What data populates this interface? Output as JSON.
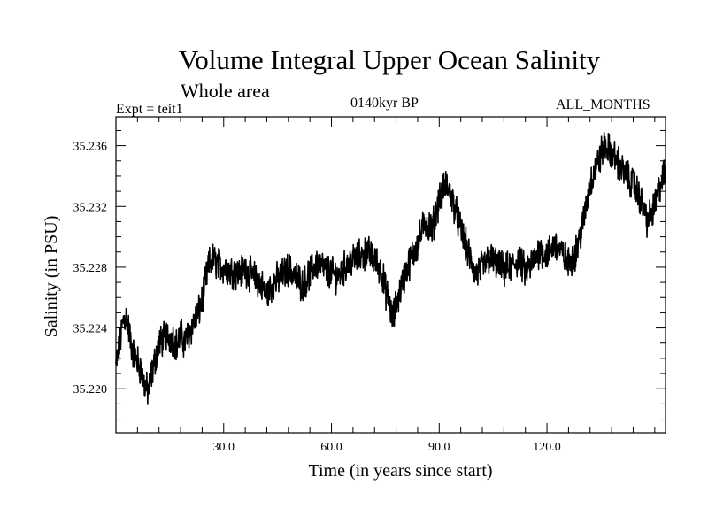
{
  "header": {
    "title": "Volume Integral Upper Ocean Salinity",
    "subtitle": "Whole area",
    "experiment": "Expt = teit1",
    "period": "0140kyr BP",
    "months": "ALL_MONTHS"
  },
  "chart_data": {
    "type": "line",
    "title": "Volume Integral Upper Ocean Salinity",
    "xlabel": "Time (in years since start)",
    "ylabel": "Salinity (in PSU)",
    "xlim": [
      0,
      153
    ],
    "ylim": [
      35.2171,
      35.2379
    ],
    "x_ticks": [
      30,
      60,
      90,
      120
    ],
    "x_tick_labels": [
      "30.0",
      "60.0",
      "90.0",
      "120.0"
    ],
    "y_ticks": [
      35.22,
      35.224,
      35.228,
      35.232,
      35.236
    ],
    "y_tick_labels": [
      "35.220",
      "35.224",
      "35.228",
      "35.232",
      "35.236"
    ],
    "color": "#000000",
    "series": [
      {
        "name": "Salinity",
        "sampling": "monthly, noisy; trend points below",
        "x": [
          0,
          1,
          2,
          3,
          4,
          5,
          6,
          7,
          8,
          9,
          10,
          11,
          12,
          14,
          16,
          17,
          18,
          19,
          20,
          21,
          22,
          23,
          24,
          25,
          26,
          27,
          28,
          30,
          32,
          34,
          36,
          38,
          40,
          42,
          44,
          46,
          48,
          50,
          52,
          54,
          56,
          58,
          60,
          62,
          64,
          66,
          68,
          70,
          72,
          74,
          75,
          76,
          77,
          78,
          80,
          82,
          84,
          86,
          88,
          90,
          92,
          94,
          96,
          98,
          100,
          102,
          104,
          106,
          108,
          110,
          112,
          114,
          116,
          118,
          120,
          122,
          124,
          126,
          128,
          130,
          132,
          134,
          136,
          138,
          140,
          142,
          144,
          146,
          148,
          150,
          152,
          153
        ],
        "values": [
          35.2215,
          35.2228,
          35.2245,
          35.2248,
          35.2232,
          35.2222,
          35.2218,
          35.2212,
          35.2202,
          35.2198,
          35.221,
          35.222,
          35.223,
          35.2235,
          35.2233,
          35.2228,
          35.2236,
          35.223,
          35.2235,
          35.224,
          35.2245,
          35.225,
          35.2258,
          35.2272,
          35.2282,
          35.2285,
          35.2283,
          35.228,
          35.2278,
          35.2276,
          35.2279,
          35.2274,
          35.227,
          35.2262,
          35.227,
          35.2274,
          35.2279,
          35.2274,
          35.2268,
          35.2276,
          35.2283,
          35.2279,
          35.2276,
          35.2274,
          35.2281,
          35.2285,
          35.2287,
          35.229,
          35.2285,
          35.2277,
          35.2265,
          35.2258,
          35.2245,
          35.2255,
          35.2272,
          35.2285,
          35.2295,
          35.231,
          35.2305,
          35.2325,
          35.2335,
          35.2322,
          35.2305,
          35.229,
          35.2275,
          35.228,
          35.2286,
          35.2282,
          35.2278,
          35.228,
          35.2285,
          35.2277,
          35.2283,
          35.2292,
          35.2288,
          35.2295,
          35.229,
          35.2282,
          35.229,
          35.2308,
          35.2335,
          35.2348,
          35.236,
          35.2355,
          35.2348,
          35.234,
          35.2335,
          35.2325,
          35.231,
          35.232,
          35.2338,
          35.2342
        ]
      }
    ]
  }
}
